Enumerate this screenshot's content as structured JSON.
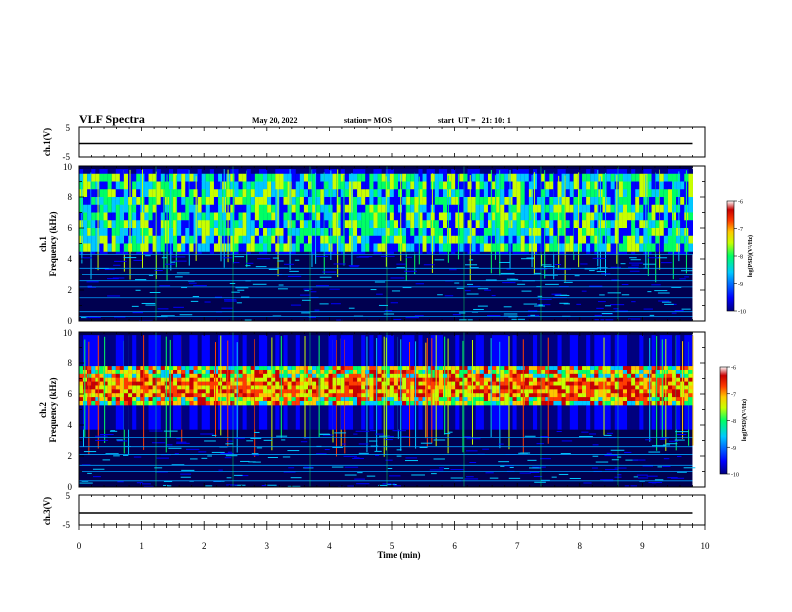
{
  "header": {
    "title": "VLF Spectra",
    "date": "May 20, 2022",
    "station": "station= MOS",
    "start": "start  UT =   21: 10: 1"
  },
  "colors": {
    "background": "#000080",
    "colormap": [
      "#00007f",
      "#0000ff",
      "#00c8ff",
      "#00ff64",
      "#c8ff00",
      "#ffc800",
      "#ff3c00",
      "#c80000",
      "#ffffff"
    ]
  },
  "chart_data": [
    {
      "id": "ch1-voltage",
      "type": "line",
      "ylabel": "ch.1(V)",
      "ylim": [
        -5,
        5
      ],
      "yticks": [
        "5",
        "-5"
      ],
      "trace_level": -0.5,
      "xlim": [
        0,
        10
      ]
    },
    {
      "id": "ch1-spectrogram",
      "type": "heatmap",
      "ylabel_channel": "ch.1",
      "ylabel": "Frequency (kHz)",
      "ylim": [
        0,
        10
      ],
      "yticks": [
        "0",
        "2",
        "4",
        "6",
        "8",
        "10"
      ],
      "xlim": [
        0,
        9.8
      ],
      "active_band_khz": [
        4.3,
        9.8
      ],
      "strong_band_khz": [
        4.5,
        9.5
      ],
      "fixed_lines_khz": [
        0.3,
        0.6,
        1.5,
        2.2,
        2.6,
        3.0,
        3.4,
        4.3
      ],
      "colorbar": {
        "label": "log(PSD)(V²/Hz)",
        "ticks": [
          "-6",
          "-7",
          "-8",
          "-9",
          "-10"
        ],
        "range": [
          -10,
          -6
        ]
      }
    },
    {
      "id": "ch2-spectrogram",
      "type": "heatmap",
      "ylabel_channel": "ch.2",
      "ylabel": "Frequency (kHz)",
      "ylim": [
        0,
        10
      ],
      "yticks": [
        "0",
        "2",
        "4",
        "6",
        "8",
        "10"
      ],
      "xlim": [
        0,
        9.8
      ],
      "active_band_khz": [
        3.7,
        9.8
      ],
      "strong_band_khz": [
        5.3,
        7.8
      ],
      "fixed_lines_khz": [
        0.4,
        1.0,
        1.4,
        2.1,
        2.6,
        3.2
      ],
      "colorbar": {
        "label": "log(PSD)(V²/Hz)",
        "ticks": [
          "-6",
          "-7",
          "-8",
          "-9",
          "-10"
        ],
        "range": [
          -10,
          -6
        ]
      }
    },
    {
      "id": "ch3-voltage",
      "type": "line",
      "ylabel": "ch.3(V)",
      "ylim": [
        -5,
        5
      ],
      "yticks": [
        "5",
        "-5"
      ],
      "trace_level": -1.0,
      "xlim": [
        0,
        10
      ]
    }
  ],
  "xaxis": {
    "label": "Time (min)",
    "range": [
      0,
      10
    ],
    "ticks": [
      "0",
      "1",
      "2",
      "3",
      "4",
      "5",
      "6",
      "7",
      "8",
      "9",
      "10"
    ]
  }
}
